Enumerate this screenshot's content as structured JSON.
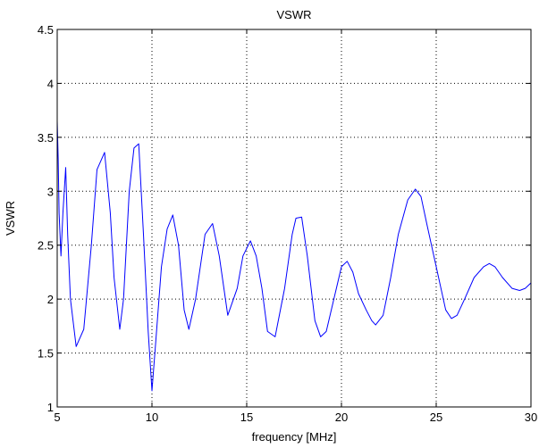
{
  "chart_data": {
    "type": "line",
    "title": "VSWR",
    "xlabel": "frequency [MHz]",
    "ylabel": "VSWR",
    "xlim": [
      5,
      30
    ],
    "ylim": [
      1,
      4.5
    ],
    "xticks": [
      5,
      10,
      15,
      20,
      25,
      30
    ],
    "yticks": [
      1,
      1.5,
      2,
      2.5,
      3,
      3.5,
      4,
      4.5
    ],
    "xtick_labels": [
      "5",
      "10",
      "15",
      "20",
      "25",
      "30"
    ],
    "ytick_labels": [
      "1",
      "1.5",
      "2",
      "2.5",
      "3",
      "3.5",
      "4",
      "4.5"
    ],
    "grid": true,
    "line_color": "#0000ff",
    "series": [
      {
        "x": [
          5.0,
          5.05,
          5.1,
          5.2,
          5.3,
          5.45,
          5.55,
          5.7,
          6.0,
          6.4,
          6.8,
          7.1,
          7.5,
          7.8,
          8.0,
          8.3,
          8.5,
          8.8,
          9.05,
          9.3,
          9.55,
          9.8,
          10.0,
          10.2,
          10.5,
          10.8,
          11.1,
          11.4,
          11.7,
          11.95,
          12.3,
          12.8,
          13.2,
          13.55,
          14.0,
          14.5,
          14.8,
          15.2,
          15.5,
          15.8,
          16.1,
          16.5,
          17.0,
          17.4,
          17.6,
          17.9,
          18.2,
          18.6,
          18.9,
          19.2,
          19.6,
          20.0,
          20.3,
          20.6,
          20.9,
          21.3,
          21.6,
          21.8,
          22.2,
          22.6,
          23.0,
          23.5,
          23.9,
          24.2,
          24.5,
          25.0,
          25.5,
          25.8,
          26.1,
          26.5,
          27.0,
          27.5,
          27.8,
          28.1,
          28.5,
          29.0,
          29.4,
          29.7,
          30.0
        ],
        "y": [
          3.65,
          3.3,
          2.8,
          2.4,
          2.8,
          3.22,
          2.6,
          2.0,
          1.56,
          1.72,
          2.5,
          3.2,
          3.36,
          2.8,
          2.2,
          1.72,
          2.0,
          3.0,
          3.4,
          3.44,
          2.6,
          1.7,
          1.15,
          1.6,
          2.3,
          2.65,
          2.78,
          2.5,
          1.9,
          1.72,
          2.0,
          2.6,
          2.7,
          2.4,
          1.85,
          2.1,
          2.4,
          2.54,
          2.4,
          2.1,
          1.7,
          1.65,
          2.1,
          2.6,
          2.75,
          2.76,
          2.4,
          1.8,
          1.65,
          1.7,
          2.0,
          2.3,
          2.35,
          2.25,
          2.05,
          1.9,
          1.8,
          1.76,
          1.85,
          2.2,
          2.6,
          2.92,
          3.02,
          2.95,
          2.7,
          2.3,
          1.9,
          1.82,
          1.85,
          2.0,
          2.2,
          2.3,
          2.33,
          2.3,
          2.2,
          2.1,
          2.08,
          2.1,
          2.15
        ]
      }
    ]
  }
}
